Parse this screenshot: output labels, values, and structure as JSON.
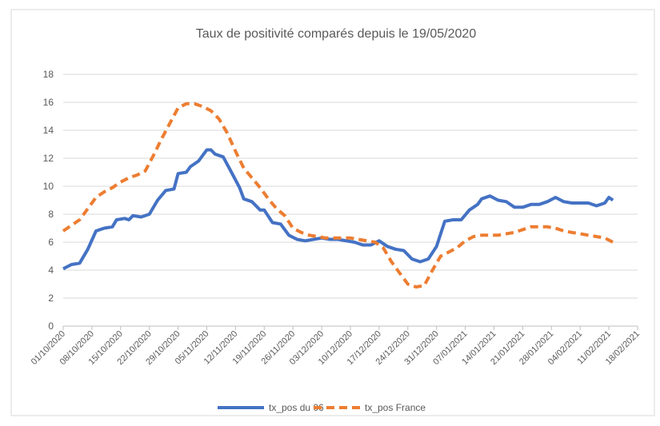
{
  "chart_data": {
    "type": "line",
    "title": "Taux de positivité comparés depuis le 19/05/2020",
    "xlim": [
      "01/10/2020",
      "18/02/2021"
    ],
    "xticks": [
      "01/10/2020",
      "08/10/2020",
      "15/10/2020",
      "22/10/2020",
      "29/10/2020",
      "05/11/2020",
      "12/11/2020",
      "19/11/2020",
      "26/11/2020",
      "03/12/2020",
      "10/12/2020",
      "17/12/2020",
      "24/12/2020",
      "31/12/2020",
      "07/01/2021",
      "14/01/2021",
      "21/01/2021",
      "28/01/2021",
      "04/02/2021",
      "11/02/2021",
      "18/02/2021"
    ],
    "ylim": [
      0,
      18
    ],
    "yticks": [
      0,
      2,
      4,
      6,
      8,
      10,
      12,
      14,
      16,
      18
    ],
    "grid": true,
    "legend": "bottom",
    "series": [
      {
        "name": "tx_pos du 06",
        "color": "#4472c4",
        "dash": false,
        "x": [
          "01/10/2020",
          "03/10/2020",
          "05/10/2020",
          "07/10/2020",
          "09/10/2020",
          "11/10/2020",
          "13/10/2020",
          "14/10/2020",
          "16/10/2020",
          "17/10/2020",
          "18/10/2020",
          "20/10/2020",
          "22/10/2020",
          "24/10/2020",
          "26/10/2020",
          "28/10/2020",
          "29/10/2020",
          "31/10/2020",
          "01/11/2020",
          "03/11/2020",
          "05/11/2020",
          "06/11/2020",
          "07/11/2020",
          "09/11/2020",
          "11/11/2020",
          "13/11/2020",
          "14/11/2020",
          "16/11/2020",
          "18/11/2020",
          "19/11/2020",
          "21/11/2020",
          "23/11/2020",
          "25/11/2020",
          "27/11/2020",
          "29/11/2020",
          "01/12/2020",
          "03/12/2020",
          "05/12/2020",
          "07/12/2020",
          "09/12/2020",
          "11/12/2020",
          "13/12/2020",
          "15/12/2020",
          "17/12/2020",
          "19/12/2020",
          "21/12/2020",
          "23/12/2020",
          "25/12/2020",
          "27/12/2020",
          "29/12/2020",
          "31/12/2020",
          "02/01/2021",
          "04/01/2021",
          "06/01/2021",
          "08/01/2021",
          "10/01/2021",
          "11/01/2021",
          "13/01/2021",
          "15/01/2021",
          "17/01/2021",
          "19/01/2021",
          "21/01/2021",
          "23/01/2021",
          "25/01/2021",
          "27/01/2021",
          "29/01/2021",
          "31/01/2021",
          "02/02/2021",
          "04/02/2021",
          "06/02/2021",
          "08/02/2021",
          "10/02/2021",
          "11/02/2021",
          "12/02/2021"
        ],
        "values": [
          4.1,
          4.4,
          4.5,
          5.5,
          6.8,
          7.0,
          7.1,
          7.6,
          7.7,
          7.6,
          7.9,
          7.8,
          8.0,
          9.0,
          9.7,
          9.8,
          10.9,
          11.0,
          11.4,
          11.8,
          12.6,
          12.6,
          12.3,
          12.1,
          11.0,
          9.9,
          9.1,
          8.9,
          8.3,
          8.3,
          7.4,
          7.3,
          6.5,
          6.2,
          6.1,
          6.2,
          6.3,
          6.2,
          6.2,
          6.1,
          6.0,
          5.8,
          5.8,
          6.1,
          5.7,
          5.5,
          5.4,
          4.8,
          4.6,
          4.8,
          5.7,
          7.5,
          7.6,
          7.6,
          8.3,
          8.7,
          9.1,
          9.3,
          9.0,
          8.9,
          8.5,
          8.5,
          8.7,
          8.7,
          8.9,
          9.2,
          8.9,
          8.8,
          8.8,
          8.8,
          8.6,
          8.8,
          9.2,
          9.0
        ]
      },
      {
        "name": "tx_pos France",
        "color": "#ed7d31",
        "dash": true,
        "x": [
          "01/10/2020",
          "03/10/2020",
          "05/10/2020",
          "07/10/2020",
          "09/10/2020",
          "11/10/2020",
          "13/10/2020",
          "15/10/2020",
          "17/10/2020",
          "19/10/2020",
          "21/10/2020",
          "23/10/2020",
          "25/10/2020",
          "27/10/2020",
          "29/10/2020",
          "31/10/2020",
          "02/11/2020",
          "04/11/2020",
          "06/11/2020",
          "08/11/2020",
          "10/11/2020",
          "12/11/2020",
          "14/11/2020",
          "16/11/2020",
          "18/11/2020",
          "20/11/2020",
          "22/11/2020",
          "24/11/2020",
          "26/11/2020",
          "28/11/2020",
          "30/11/2020",
          "02/12/2020",
          "04/12/2020",
          "06/12/2020",
          "08/12/2020",
          "10/12/2020",
          "12/12/2020",
          "14/12/2020",
          "16/12/2020",
          "18/12/2020",
          "20/12/2020",
          "22/12/2020",
          "24/12/2020",
          "26/12/2020",
          "28/12/2020",
          "30/12/2020",
          "01/01/2021",
          "03/01/2021",
          "05/01/2021",
          "07/01/2021",
          "09/01/2021",
          "11/01/2021",
          "13/01/2021",
          "15/01/2021",
          "17/01/2021",
          "19/01/2021",
          "21/01/2021",
          "23/01/2021",
          "25/01/2021",
          "27/01/2021",
          "29/01/2021",
          "31/01/2021",
          "02/02/2021",
          "04/02/2021",
          "06/02/2021",
          "08/02/2021",
          "10/02/2021",
          "12/02/2021"
        ],
        "values": [
          6.8,
          7.2,
          7.6,
          8.4,
          9.2,
          9.6,
          9.9,
          10.3,
          10.6,
          10.8,
          11.1,
          12.2,
          13.4,
          14.5,
          15.6,
          15.9,
          15.9,
          15.7,
          15.4,
          14.8,
          13.8,
          12.5,
          11.3,
          10.6,
          9.9,
          9.1,
          8.4,
          7.9,
          7.0,
          6.7,
          6.5,
          6.4,
          6.3,
          6.3,
          6.3,
          6.3,
          6.2,
          6.1,
          6.0,
          5.6,
          4.6,
          3.8,
          3.0,
          2.8,
          2.9,
          4.0,
          5.0,
          5.3,
          5.6,
          6.1,
          6.4,
          6.5,
          6.5,
          6.5,
          6.6,
          6.7,
          6.9,
          7.1,
          7.1,
          7.1,
          7.0,
          6.8,
          6.7,
          6.6,
          6.5,
          6.4,
          6.3,
          6.0
        ]
      }
    ]
  }
}
